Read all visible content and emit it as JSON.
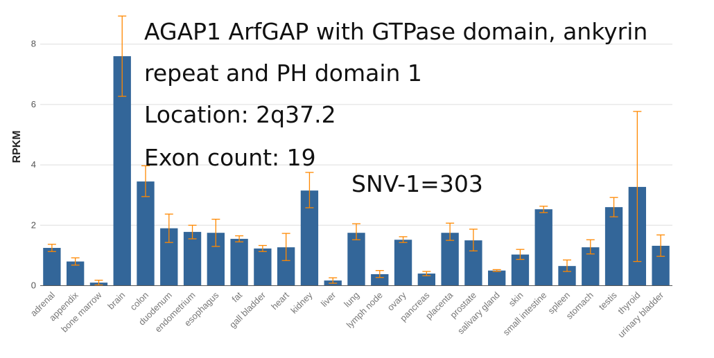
{
  "chart_data": {
    "type": "bar",
    "ylabel": "RPKM",
    "ylim": [
      0,
      9
    ],
    "yticks": [
      0,
      2,
      4,
      6,
      8
    ],
    "grid": true,
    "categories": [
      "adrenal",
      "appendix",
      "bone marrow",
      "brain",
      "colon",
      "duodenum",
      "endometrium",
      "esophagus",
      "fat",
      "gall bladder",
      "heart",
      "kidney",
      "liver",
      "lung",
      "lymph node",
      "ovary",
      "pancreas",
      "placenta",
      "prostate",
      "salivary gland",
      "skin",
      "small intestine",
      "spleen",
      "stomach",
      "testis",
      "thyroid",
      "urinary bladder"
    ],
    "values": [
      1.25,
      0.8,
      0.1,
      7.6,
      3.45,
      1.9,
      1.78,
      1.75,
      1.55,
      1.23,
      1.27,
      3.15,
      0.17,
      1.75,
      0.38,
      1.52,
      0.4,
      1.75,
      1.5,
      0.5,
      1.03,
      2.53,
      0.65,
      1.27,
      2.6,
      3.27,
      1.32
    ],
    "error_low": [
      1.13,
      0.68,
      0.02,
      6.27,
      2.95,
      1.43,
      1.55,
      1.3,
      1.45,
      1.13,
      0.83,
      2.58,
      0.08,
      1.52,
      0.27,
      1.43,
      0.33,
      1.5,
      1.15,
      0.47,
      0.87,
      2.42,
      0.47,
      1.05,
      2.28,
      0.8,
      0.97
    ],
    "error_high": [
      1.37,
      0.92,
      0.18,
      8.93,
      3.97,
      2.37,
      2.0,
      2.2,
      1.65,
      1.33,
      1.73,
      3.75,
      0.26,
      2.05,
      0.5,
      1.62,
      0.47,
      2.07,
      1.87,
      0.53,
      1.2,
      2.63,
      0.85,
      1.52,
      2.92,
      5.77,
      1.68
    ],
    "bar_color": "#336699",
    "error_color": "#ff8800",
    "annotations": [
      "AGAP1 ArfGAP with GTPase domain, ankyrin",
      "repeat and PH domain 1",
      "Location: 2q37.2",
      "Exon count: 19",
      "SNV-1=303"
    ]
  }
}
